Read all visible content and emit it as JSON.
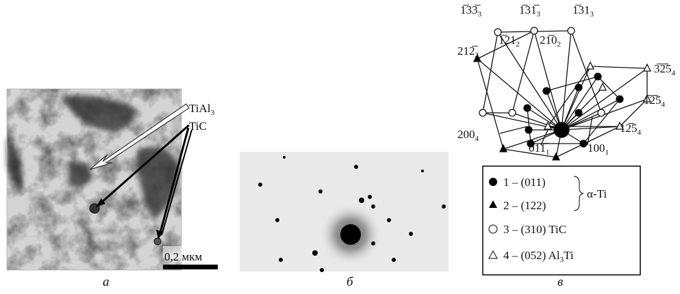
{
  "panel_a": {
    "labels": [
      {
        "text": "TiAl",
        "sub": "3"
      },
      {
        "text": "TiC"
      }
    ],
    "scale_bar": "0,2 мкм",
    "caption": "а"
  },
  "panel_b": {
    "caption": "б"
  },
  "panel_c": {
    "spot_labels": [
      {
        "text": "1̅33̅",
        "sub": "3"
      },
      {
        "text": "1̅31̅",
        "sub": "3"
      },
      {
        "text": "1̅31",
        "sub": "3"
      },
      {
        "text": "1̅21",
        "sub": "2"
      },
      {
        "text": "21̅0",
        "sub": "2"
      },
      {
        "text": "212̅",
        "sub": "2"
      },
      {
        "text": "3̅2̅5",
        "sub": "4"
      },
      {
        "text": "1̅2̅5",
        "sub": "4"
      },
      {
        "text": "12̅5",
        "sub": "4"
      },
      {
        "text": "200",
        "sub": "4"
      },
      {
        "text": "011̅",
        "sub": "1"
      },
      {
        "text": "100",
        "sub": "1"
      }
    ],
    "legend": [
      {
        "text": "1 – (011)"
      },
      {
        "text": "2 – (122)"
      },
      {
        "text": "3 – (310) TiC"
      },
      {
        "text": "4 – (052) Al",
        "sub": "3",
        "after": "Ti"
      }
    ],
    "phase": "α-Ti",
    "caption": "в"
  }
}
